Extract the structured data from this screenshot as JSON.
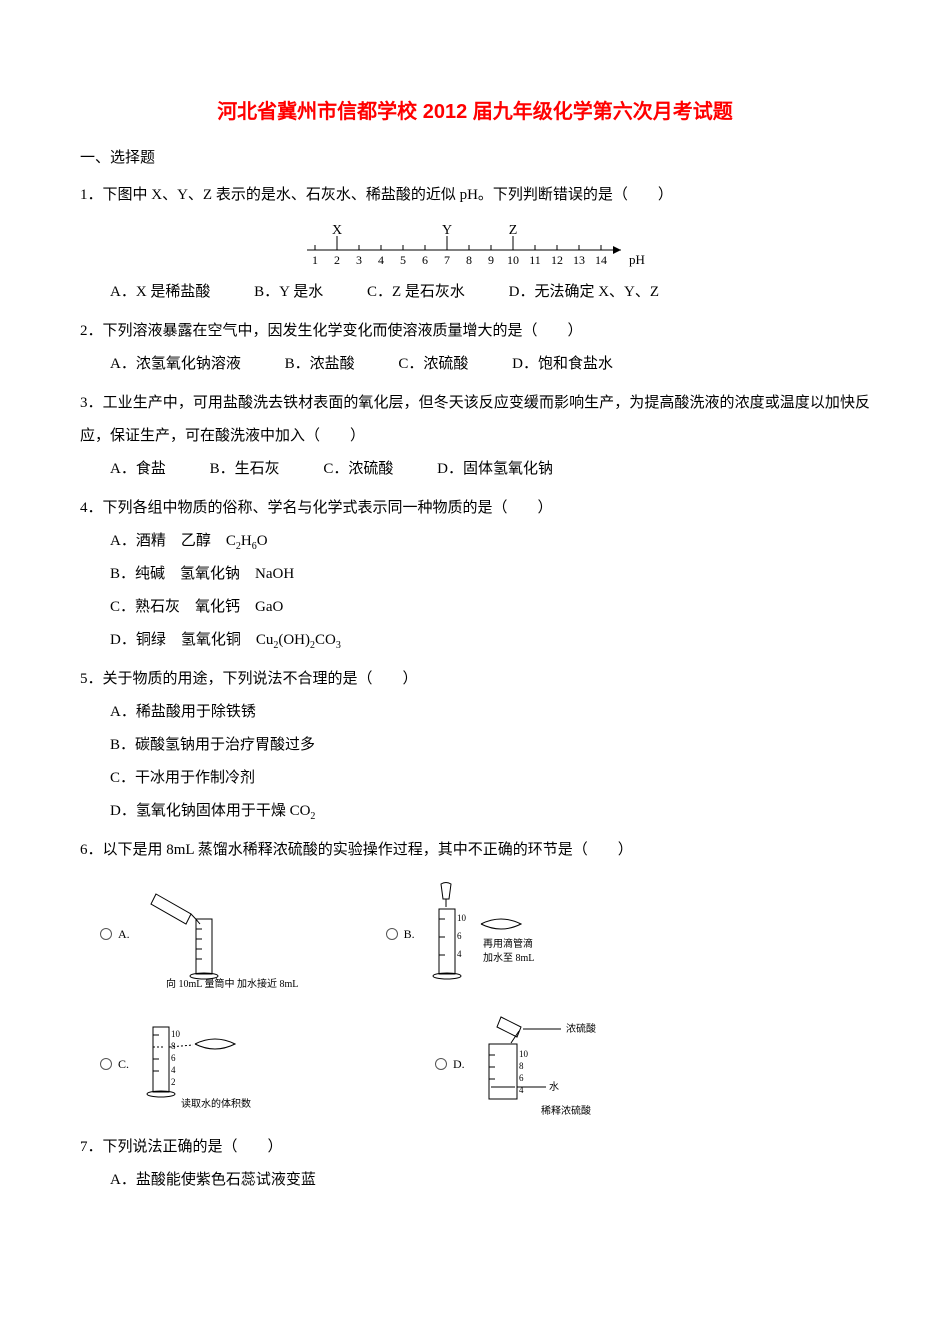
{
  "title": "河北省冀州市信都学校 2012 届九年级化学第六次月考试题",
  "section1_head": "一、选择题",
  "q1": {
    "stem": "1．下图中 X、Y、Z 表示的是水、石灰水、稀盐酸的近似 pH。下列判断错误的是（　　）",
    "scale": {
      "labels": [
        "X",
        "Y",
        "Z"
      ],
      "label_positions": [
        2,
        7,
        10
      ],
      "ticks": [
        "1",
        "2",
        "3",
        "4",
        "5",
        "6",
        "7",
        "8",
        "9",
        "10",
        "11",
        "12",
        "13",
        "14"
      ],
      "axis_label": "pH",
      "tick_color": "#000000",
      "text_color": "#000000",
      "font_size": 12
    },
    "optA": "A．X 是稀盐酸",
    "optB": "B．Y 是水",
    "optC": "C．Z 是石灰水",
    "optD": "D．无法确定 X、Y、Z"
  },
  "q2": {
    "stem": "2．下列溶液暴露在空气中，因发生化学变化而使溶液质量增大的是（　　）",
    "optA": "A．浓氢氧化钠溶液",
    "optB": "B．浓盐酸",
    "optC": "C．浓硫酸",
    "optD": "D．饱和食盐水"
  },
  "q3": {
    "stem": "3．工业生产中，可用盐酸洗去铁材表面的氧化层，但冬天该反应变缓而影响生产，为提高酸洗液的浓度或温度以加快反应，保证生产，可在酸洗液中加入（　　）",
    "optA": "A．食盐",
    "optB": "B．生石灰",
    "optC": "C．浓硫酸",
    "optD": "D．固体氢氧化钠"
  },
  "q4": {
    "stem": "4．下列各组中物质的俗称、学名与化学式表示同一种物质的是（　　）",
    "optA_pre": "A．酒精　乙醇　C",
    "optA_sub1": "2",
    "optA_mid": "H",
    "optA_sub2": "6",
    "optA_post": "O",
    "optB": "B．纯碱　氢氧化钠　NaOH",
    "optC": "C．熟石灰　氧化钙　GaO",
    "optD_pre": "D．铜绿　氢氧化铜　Cu",
    "optD_sub1": "2",
    "optD_mid1": "(OH)",
    "optD_sub2": "2",
    "optD_mid2": "CO",
    "optD_sub3": "3"
  },
  "q5": {
    "stem": "5．关于物质的用途，下列说法不合理的是（　　）",
    "optA": "A．稀盐酸用于除铁锈",
    "optB": "B．碳酸氢钠用于治疗胃酸过多",
    "optC": "C．干冰用于作制冷剂",
    "optD_pre": "D．氢氧化钠固体用于干燥 CO",
    "optD_sub": "2"
  },
  "q6": {
    "stem": "6．以下是用 8mL 蒸馏水稀释浓硫酸的实验操作过程，其中不正确的环节是（　　）",
    "imgA_label": "A.",
    "imgA_cap1": "向 10mL 量筒中",
    "imgA_cap2": "加水接近 8mL",
    "imgB_label": "B.",
    "imgB_cap1": "再用滴管滴",
    "imgB_cap2": "加水至 8mL",
    "imgC_label": "C.",
    "imgC_cap": "读取水的体积数",
    "imgD_label": "D.",
    "imgD_cap1": "浓硫酸",
    "imgD_cap2": "水",
    "imgD_cap3": "稀释浓硫酸"
  },
  "q7": {
    "stem": "7．下列说法正确的是（　　）",
    "optA": "A．盐酸能使紫色石蕊试液变蓝"
  },
  "colors": {
    "title": "#ff0000",
    "text": "#000000",
    "background": "#ffffff"
  }
}
